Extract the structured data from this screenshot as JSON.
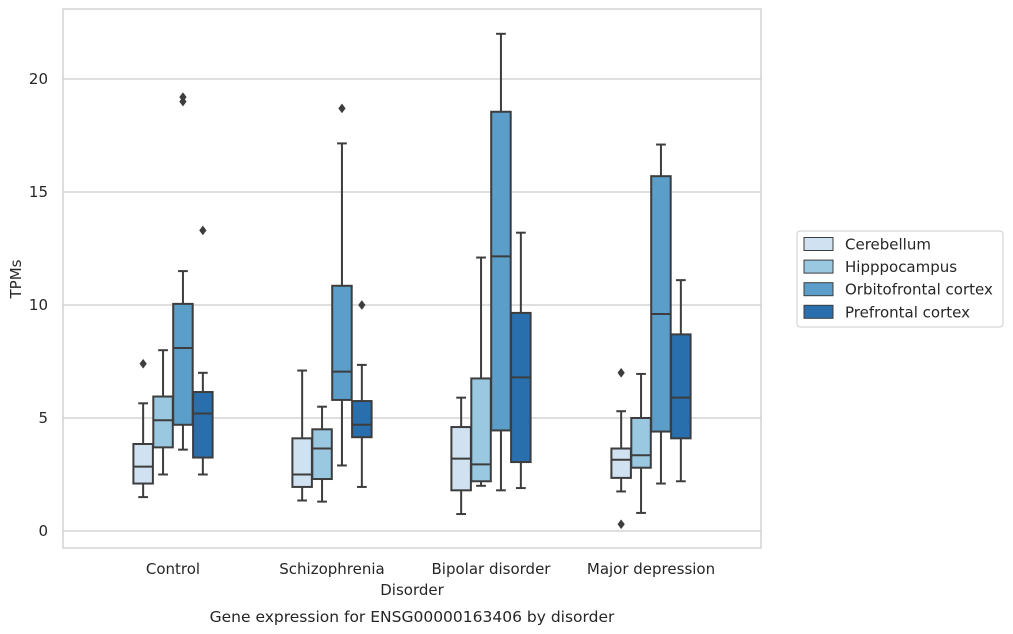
{
  "caption": "Gene expression for ENSG00000163406 by disorder",
  "chart_data": {
    "type": "boxplot",
    "xlabel": "Disorder",
    "ylabel": "TPMs",
    "ylim": [
      -0.7,
      23
    ],
    "yticks": [
      0,
      5,
      10,
      15,
      20
    ],
    "grid": "horizontal",
    "legend_position": "right",
    "categories": [
      "Control",
      "Schizophrenia",
      "Bipolar disorder",
      "Major depression"
    ],
    "series": [
      {
        "name": "Cerebellum",
        "color": "#d0e1f2",
        "boxes": [
          {
            "whisker_low": 1.5,
            "q1": 2.1,
            "median": 2.85,
            "q3": 3.85,
            "whisker_high": 5.65,
            "outliers": [
              7.4
            ]
          },
          {
            "whisker_low": 1.35,
            "q1": 1.95,
            "median": 2.5,
            "q3": 4.1,
            "whisker_high": 7.1,
            "outliers": []
          },
          {
            "whisker_low": 0.75,
            "q1": 1.8,
            "median": 3.2,
            "q3": 4.6,
            "whisker_high": 5.9,
            "outliers": []
          },
          {
            "whisker_low": 1.75,
            "q1": 2.35,
            "median": 3.15,
            "q3": 3.65,
            "whisker_high": 5.3,
            "outliers": [
              0.3,
              7.0
            ]
          }
        ]
      },
      {
        "name": "Hipppocampus",
        "color": "#9ac8e0",
        "boxes": [
          {
            "whisker_low": 2.5,
            "q1": 3.7,
            "median": 4.9,
            "q3": 5.95,
            "whisker_high": 8.0,
            "outliers": []
          },
          {
            "whisker_low": 1.3,
            "q1": 2.3,
            "median": 3.65,
            "q3": 4.5,
            "whisker_high": 5.5,
            "outliers": []
          },
          {
            "whisker_low": 2.0,
            "q1": 2.2,
            "median": 2.95,
            "q3": 6.75,
            "whisker_high": 12.1,
            "outliers": []
          },
          {
            "whisker_low": 0.8,
            "q1": 2.8,
            "median": 3.35,
            "q3": 5.0,
            "whisker_high": 6.95,
            "outliers": []
          }
        ]
      },
      {
        "name": "Orbitofrontal cortex",
        "color": "#5a9ec9",
        "boxes": [
          {
            "whisker_low": 3.6,
            "q1": 4.7,
            "median": 8.1,
            "q3": 10.05,
            "whisker_high": 11.5,
            "outliers": [
              19.0,
              19.2
            ]
          },
          {
            "whisker_low": 2.9,
            "q1": 5.8,
            "median": 7.05,
            "q3": 10.85,
            "whisker_high": 17.15,
            "outliers": [
              18.7
            ]
          },
          {
            "whisker_low": 1.8,
            "q1": 4.45,
            "median": 12.15,
            "q3": 18.55,
            "whisker_high": 22.0,
            "outliers": []
          },
          {
            "whisker_low": 2.1,
            "q1": 4.4,
            "median": 9.6,
            "q3": 15.7,
            "whisker_high": 17.1,
            "outliers": []
          }
        ]
      },
      {
        "name": "Prefrontal cortex",
        "color": "#2a6fad",
        "boxes": [
          {
            "whisker_low": 2.5,
            "q1": 3.25,
            "median": 5.2,
            "q3": 6.15,
            "whisker_high": 7.0,
            "outliers": [
              13.3
            ]
          },
          {
            "whisker_low": 1.95,
            "q1": 4.15,
            "median": 4.7,
            "q3": 5.75,
            "whisker_high": 7.35,
            "outliers": [
              10.0
            ]
          },
          {
            "whisker_low": 1.9,
            "q1": 3.05,
            "median": 6.8,
            "q3": 9.65,
            "whisker_high": 13.2,
            "outliers": []
          },
          {
            "whisker_low": 2.2,
            "q1": 4.1,
            "median": 5.9,
            "q3": 8.7,
            "whisker_high": 11.1,
            "outliers": []
          }
        ]
      }
    ]
  }
}
